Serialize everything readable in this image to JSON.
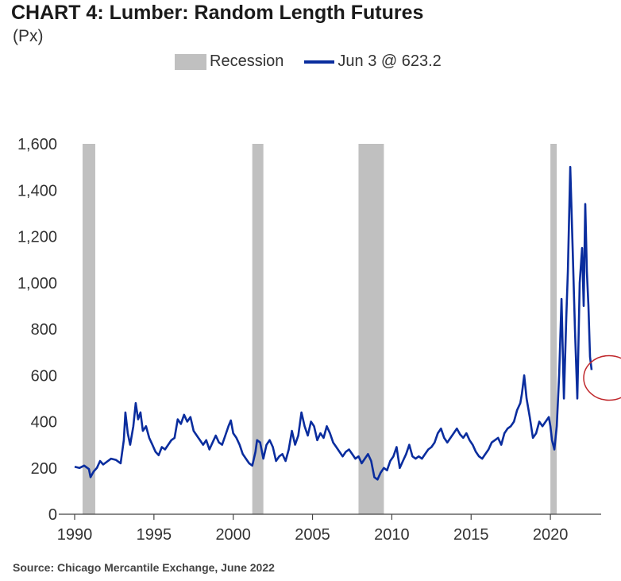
{
  "header": {
    "title": "CHART 4: Lumber: Random Length Futures",
    "subtitle": "(Px)"
  },
  "legend": {
    "recession_label": "Recession",
    "series_label": "Jun 3 @ 623.2"
  },
  "source": "Source: Chicago Mercantile Exchange, June 2022",
  "colors": {
    "line": "#0a2d9e",
    "recession": "#c0c0c0",
    "highlight_circle": "#c0282c",
    "axis": "#444444"
  },
  "chart_data": {
    "type": "line",
    "title": "CHART 4: Lumber: Random Length Futures",
    "subtitle": "(Px)",
    "xlabel": "",
    "ylabel": "",
    "xlim": [
      1990,
      2023.2
    ],
    "ylim": [
      0,
      1600
    ],
    "x_ticks": [
      "1990",
      "1995",
      "2000",
      "2005",
      "2010",
      "2015",
      "2020"
    ],
    "y_ticks": [
      "0",
      "200",
      "400",
      "600",
      "800",
      "1,000",
      "1,200",
      "1,400",
      "1,600"
    ],
    "grid": false,
    "legend_position": "top",
    "annotation": "circle around latest value",
    "recessions": [
      [
        1990.5,
        1991.3
      ],
      [
        2001.2,
        2001.9
      ],
      [
        2007.9,
        2009.5
      ],
      [
        2020.0,
        2020.4
      ]
    ],
    "series": [
      {
        "name": "Jun 3 @ 623.2",
        "points": [
          [
            1990.0,
            205
          ],
          [
            1990.3,
            200
          ],
          [
            1990.6,
            210
          ],
          [
            1990.9,
            195
          ],
          [
            1991.0,
            160
          ],
          [
            1991.2,
            185
          ],
          [
            1991.4,
            200
          ],
          [
            1991.6,
            230
          ],
          [
            1991.8,
            215
          ],
          [
            1992.0,
            225
          ],
          [
            1992.3,
            240
          ],
          [
            1992.6,
            235
          ],
          [
            1992.9,
            220
          ],
          [
            1993.1,
            320
          ],
          [
            1993.2,
            440
          ],
          [
            1993.35,
            350
          ],
          [
            1993.5,
            300
          ],
          [
            1993.7,
            380
          ],
          [
            1993.85,
            480
          ],
          [
            1994.0,
            410
          ],
          [
            1994.15,
            440
          ],
          [
            1994.3,
            360
          ],
          [
            1994.5,
            380
          ],
          [
            1994.7,
            330
          ],
          [
            1994.9,
            300
          ],
          [
            1995.1,
            270
          ],
          [
            1995.3,
            255
          ],
          [
            1995.5,
            290
          ],
          [
            1995.7,
            280
          ],
          [
            1995.9,
            300
          ],
          [
            1996.1,
            320
          ],
          [
            1996.3,
            330
          ],
          [
            1996.5,
            410
          ],
          [
            1996.7,
            390
          ],
          [
            1996.9,
            430
          ],
          [
            1997.1,
            400
          ],
          [
            1997.3,
            420
          ],
          [
            1997.5,
            360
          ],
          [
            1997.7,
            340
          ],
          [
            1997.9,
            320
          ],
          [
            1998.1,
            300
          ],
          [
            1998.3,
            320
          ],
          [
            1998.5,
            280
          ],
          [
            1998.7,
            310
          ],
          [
            1998.9,
            340
          ],
          [
            1999.1,
            310
          ],
          [
            1999.3,
            300
          ],
          [
            1999.5,
            340
          ],
          [
            1999.7,
            380
          ],
          [
            1999.85,
            405
          ],
          [
            2000.0,
            350
          ],
          [
            2000.2,
            330
          ],
          [
            2000.4,
            300
          ],
          [
            2000.6,
            260
          ],
          [
            2000.8,
            240
          ],
          [
            2001.0,
            220
          ],
          [
            2001.2,
            210
          ],
          [
            2001.4,
            270
          ],
          [
            2001.5,
            320
          ],
          [
            2001.7,
            310
          ],
          [
            2001.9,
            240
          ],
          [
            2002.1,
            300
          ],
          [
            2002.3,
            320
          ],
          [
            2002.5,
            290
          ],
          [
            2002.7,
            230
          ],
          [
            2002.9,
            250
          ],
          [
            2003.1,
            260
          ],
          [
            2003.3,
            230
          ],
          [
            2003.5,
            280
          ],
          [
            2003.7,
            360
          ],
          [
            2003.9,
            300
          ],
          [
            2004.1,
            340
          ],
          [
            2004.3,
            440
          ],
          [
            2004.5,
            380
          ],
          [
            2004.7,
            340
          ],
          [
            2004.9,
            400
          ],
          [
            2005.1,
            380
          ],
          [
            2005.3,
            320
          ],
          [
            2005.5,
            350
          ],
          [
            2005.7,
            330
          ],
          [
            2005.9,
            380
          ],
          [
            2006.1,
            350
          ],
          [
            2006.3,
            310
          ],
          [
            2006.5,
            290
          ],
          [
            2006.7,
            270
          ],
          [
            2006.9,
            250
          ],
          [
            2007.1,
            270
          ],
          [
            2007.3,
            280
          ],
          [
            2007.5,
            260
          ],
          [
            2007.7,
            240
          ],
          [
            2007.9,
            250
          ],
          [
            2008.1,
            220
          ],
          [
            2008.3,
            240
          ],
          [
            2008.5,
            260
          ],
          [
            2008.7,
            230
          ],
          [
            2008.9,
            160
          ],
          [
            2009.1,
            150
          ],
          [
            2009.3,
            180
          ],
          [
            2009.5,
            200
          ],
          [
            2009.7,
            190
          ],
          [
            2009.9,
            230
          ],
          [
            2010.1,
            250
          ],
          [
            2010.3,
            290
          ],
          [
            2010.5,
            200
          ],
          [
            2010.7,
            230
          ],
          [
            2010.9,
            260
          ],
          [
            2011.1,
            300
          ],
          [
            2011.3,
            250
          ],
          [
            2011.5,
            240
          ],
          [
            2011.7,
            250
          ],
          [
            2011.9,
            240
          ],
          [
            2012.1,
            260
          ],
          [
            2012.3,
            280
          ],
          [
            2012.5,
            290
          ],
          [
            2012.7,
            310
          ],
          [
            2012.9,
            350
          ],
          [
            2013.1,
            370
          ],
          [
            2013.3,
            330
          ],
          [
            2013.5,
            310
          ],
          [
            2013.7,
            330
          ],
          [
            2013.9,
            350
          ],
          [
            2014.1,
            370
          ],
          [
            2014.3,
            345
          ],
          [
            2014.5,
            330
          ],
          [
            2014.7,
            350
          ],
          [
            2014.9,
            320
          ],
          [
            2015.1,
            300
          ],
          [
            2015.3,
            270
          ],
          [
            2015.5,
            250
          ],
          [
            2015.7,
            240
          ],
          [
            2015.9,
            260
          ],
          [
            2016.1,
            280
          ],
          [
            2016.3,
            310
          ],
          [
            2016.5,
            320
          ],
          [
            2016.7,
            330
          ],
          [
            2016.9,
            300
          ],
          [
            2017.1,
            350
          ],
          [
            2017.3,
            370
          ],
          [
            2017.5,
            380
          ],
          [
            2017.7,
            400
          ],
          [
            2017.9,
            450
          ],
          [
            2018.1,
            480
          ],
          [
            2018.2,
            520
          ],
          [
            2018.35,
            600
          ],
          [
            2018.5,
            500
          ],
          [
            2018.7,
            420
          ],
          [
            2018.9,
            330
          ],
          [
            2019.1,
            350
          ],
          [
            2019.3,
            400
          ],
          [
            2019.5,
            380
          ],
          [
            2019.7,
            400
          ],
          [
            2019.9,
            420
          ],
          [
            2020.0,
            380
          ],
          [
            2020.1,
            320
          ],
          [
            2020.25,
            280
          ],
          [
            2020.4,
            380
          ],
          [
            2020.55,
            600
          ],
          [
            2020.7,
            930
          ],
          [
            2020.85,
            500
          ],
          [
            2021.0,
            850
          ],
          [
            2021.1,
            1050
          ],
          [
            2021.25,
            1500
          ],
          [
            2021.4,
            1150
          ],
          [
            2021.55,
            800
          ],
          [
            2021.7,
            500
          ],
          [
            2021.85,
            1000
          ],
          [
            2022.0,
            1150
          ],
          [
            2022.1,
            900
          ],
          [
            2022.2,
            1340
          ],
          [
            2022.3,
            1050
          ],
          [
            2022.4,
            900
          ],
          [
            2022.5,
            680
          ],
          [
            2022.6,
            623.2
          ]
        ]
      }
    ]
  }
}
